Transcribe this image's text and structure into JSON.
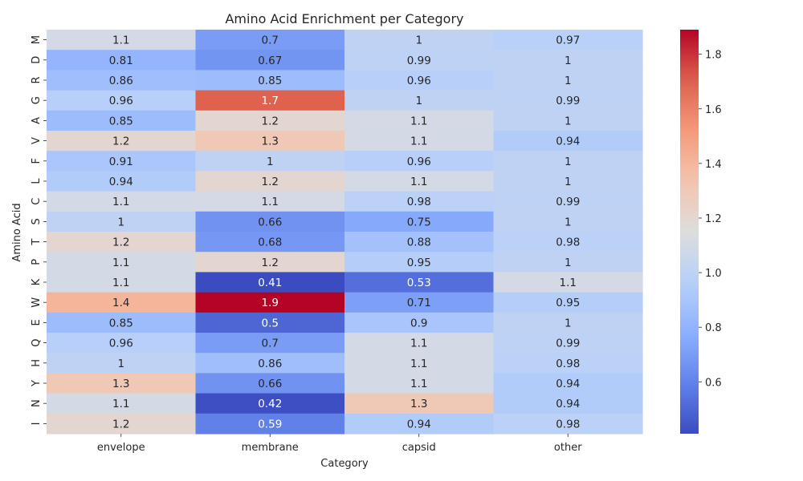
{
  "chart_data": {
    "type": "heatmap",
    "title": "Amino Acid Enrichment per Category",
    "xlabel": "Category",
    "ylabel": "Amino Acid",
    "x_categories": [
      "envelope",
      "membrane",
      "capsid",
      "other"
    ],
    "y_categories": [
      "M",
      "D",
      "R",
      "G",
      "A",
      "V",
      "F",
      "L",
      "C",
      "S",
      "T",
      "P",
      "K",
      "W",
      "E",
      "Q",
      "H",
      "Y",
      "N",
      "I"
    ],
    "values": [
      [
        1.1,
        0.7,
        1,
        0.97
      ],
      [
        0.81,
        0.67,
        0.99,
        1
      ],
      [
        0.86,
        0.85,
        0.96,
        1
      ],
      [
        0.96,
        1.7,
        1,
        0.99
      ],
      [
        0.85,
        1.2,
        1.1,
        1
      ],
      [
        1.2,
        1.3,
        1.1,
        0.94
      ],
      [
        0.91,
        1,
        0.96,
        1
      ],
      [
        0.94,
        1.2,
        1.1,
        1
      ],
      [
        1.1,
        1.1,
        0.98,
        0.99
      ],
      [
        1,
        0.66,
        0.75,
        1
      ],
      [
        1.2,
        0.68,
        0.88,
        0.98
      ],
      [
        1.1,
        1.2,
        0.95,
        1
      ],
      [
        1.1,
        0.41,
        0.53,
        1.1
      ],
      [
        1.4,
        1.9,
        0.71,
        0.95
      ],
      [
        0.85,
        0.5,
        0.9,
        1
      ],
      [
        0.96,
        0.7,
        1.1,
        0.99
      ],
      [
        1,
        0.86,
        1.1,
        0.98
      ],
      [
        1.3,
        0.66,
        1.1,
        0.94
      ],
      [
        1.1,
        0.42,
        1.3,
        0.94
      ],
      [
        1.2,
        0.59,
        0.94,
        0.98
      ]
    ],
    "colormap": "coolwarm",
    "color_range": [
      0.41,
      1.89
    ],
    "colorbar_ticks": [
      "0.6",
      "0.8",
      "1.0",
      "1.2",
      "1.4",
      "1.6",
      "1.8"
    ],
    "grid": false,
    "legend": "colorbar-right"
  }
}
